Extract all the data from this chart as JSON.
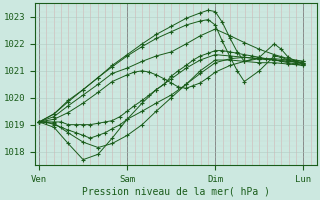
{
  "bg_color": "#cce8e0",
  "plot_bg_color": "#cce8e0",
  "line_color": "#1a5c1a",
  "marker_color": "#1a5c1a",
  "xlabel": "Pression niveau de la mer( hPa )",
  "xtick_labels": [
    "Ven",
    "Sam",
    "Dim",
    "Lun"
  ],
  "xtick_positions": [
    0,
    1,
    2,
    3
  ],
  "ylim": [
    1017.5,
    1023.5
  ],
  "xlim": [
    -0.05,
    3.15
  ],
  "yticks": [
    1018,
    1019,
    1020,
    1021,
    1022,
    1023
  ],
  "series": [
    {
      "x": [
        0.0,
        0.08,
        0.17,
        0.25,
        0.33,
        0.42,
        0.5,
        0.58,
        0.67,
        0.75,
        0.83,
        0.92,
        1.0,
        1.08,
        1.17,
        1.25,
        1.33,
        1.42,
        1.5,
        1.58,
        1.67,
        1.75,
        1.83,
        1.92,
        2.0,
        2.08,
        2.17,
        2.25,
        2.33,
        2.42,
        2.5,
        2.58,
        2.67,
        2.75,
        2.83,
        2.92,
        3.0
      ],
      "y": [
        1019.1,
        1019.1,
        1019.1,
        1019.1,
        1019.0,
        1019.0,
        1019.0,
        1019.0,
        1019.05,
        1019.1,
        1019.15,
        1019.3,
        1019.5,
        1019.7,
        1019.9,
        1020.1,
        1020.3,
        1020.5,
        1020.8,
        1021.0,
        1021.2,
        1021.4,
        1021.55,
        1021.65,
        1021.75,
        1021.75,
        1021.7,
        1021.65,
        1021.6,
        1021.55,
        1021.5,
        1021.45,
        1021.4,
        1021.35,
        1021.3,
        1021.25,
        1021.2
      ]
    },
    {
      "x": [
        0.0,
        0.08,
        0.17,
        0.25,
        0.33,
        0.42,
        0.5,
        0.58,
        0.67,
        0.75,
        0.83,
        0.92,
        1.0,
        1.17,
        1.33,
        1.5,
        1.67,
        1.83,
        2.0,
        2.17,
        2.33,
        2.5,
        2.67,
        2.83,
        3.0
      ],
      "y": [
        1019.1,
        1019.1,
        1019.0,
        1018.9,
        1018.8,
        1018.7,
        1018.6,
        1018.5,
        1018.6,
        1018.7,
        1018.85,
        1019.0,
        1019.2,
        1019.5,
        1019.8,
        1020.1,
        1020.5,
        1020.9,
        1021.3,
        1021.45,
        1021.5,
        1021.45,
        1021.4,
        1021.35,
        1021.3
      ]
    },
    {
      "x": [
        0.0,
        0.17,
        0.33,
        0.5,
        0.67,
        0.83,
        1.0,
        1.17,
        1.33,
        1.5,
        1.67,
        1.83,
        2.0,
        2.17,
        2.33,
        2.5,
        2.67,
        2.83,
        3.0
      ],
      "y": [
        1019.1,
        1019.05,
        1018.7,
        1018.35,
        1018.15,
        1018.3,
        1018.6,
        1019.0,
        1019.5,
        1020.0,
        1020.5,
        1021.0,
        1021.4,
        1021.4,
        1021.35,
        1021.3,
        1021.3,
        1021.25,
        1021.2
      ]
    },
    {
      "x": [
        0.0,
        0.17,
        0.33,
        0.5,
        0.67,
        0.83,
        1.0,
        1.17,
        1.33,
        1.5,
        1.67,
        1.83,
        2.0,
        2.17,
        2.33,
        2.5,
        2.67,
        2.83,
        3.0
      ],
      "y": [
        1019.1,
        1018.9,
        1018.3,
        1017.7,
        1017.9,
        1018.5,
        1019.2,
        1019.8,
        1020.3,
        1020.7,
        1021.1,
        1021.4,
        1021.6,
        1021.55,
        1021.5,
        1021.45,
        1021.4,
        1021.35,
        1021.3
      ]
    },
    {
      "x": [
        0.0,
        0.17,
        0.33,
        0.5,
        0.67,
        0.83,
        1.0,
        1.08,
        1.17,
        1.25,
        1.33,
        1.42,
        1.5,
        1.58,
        1.67,
        1.75,
        1.83,
        1.92,
        2.0,
        2.17,
        2.33,
        2.5,
        2.67,
        2.83,
        3.0
      ],
      "y": [
        1019.1,
        1019.2,
        1019.45,
        1019.8,
        1020.2,
        1020.6,
        1020.85,
        1020.95,
        1021.0,
        1020.95,
        1020.85,
        1020.7,
        1020.55,
        1020.4,
        1020.35,
        1020.45,
        1020.55,
        1020.75,
        1020.95,
        1021.2,
        1021.35,
        1021.45,
        1021.45,
        1021.4,
        1021.35
      ]
    },
    {
      "x": [
        0.0,
        0.17,
        0.33,
        0.5,
        0.67,
        0.83,
        1.0,
        1.17,
        1.33,
        1.5,
        1.67,
        1.83,
        2.0,
        2.17,
        2.33,
        2.5,
        2.67,
        2.83,
        3.0
      ],
      "y": [
        1019.1,
        1019.3,
        1019.7,
        1020.1,
        1020.5,
        1020.9,
        1021.1,
        1021.35,
        1021.55,
        1021.7,
        1022.0,
        1022.3,
        1022.55,
        1022.3,
        1022.05,
        1021.8,
        1021.6,
        1021.45,
        1021.35
      ]
    },
    {
      "x": [
        0.0,
        0.17,
        0.33,
        0.5,
        0.67,
        0.83,
        1.0,
        1.17,
        1.33,
        1.5,
        1.67,
        1.83,
        1.92,
        2.0,
        2.08,
        2.17,
        2.25,
        2.33,
        2.5,
        2.67,
        2.75,
        2.83,
        2.92,
        3.0
      ],
      "y": [
        1019.1,
        1019.4,
        1019.85,
        1020.3,
        1020.75,
        1021.2,
        1021.6,
        1022.0,
        1022.35,
        1022.65,
        1022.95,
        1023.15,
        1023.25,
        1023.2,
        1022.8,
        1022.2,
        1021.7,
        1021.35,
        1021.5,
        1022.0,
        1021.8,
        1021.5,
        1021.35,
        1021.25
      ]
    },
    {
      "x": [
        0.0,
        0.17,
        0.33,
        0.5,
        0.67,
        0.83,
        1.0,
        1.17,
        1.33,
        1.5,
        1.67,
        1.83,
        1.92,
        2.0,
        2.08,
        2.17,
        2.25,
        2.33,
        2.5,
        2.67,
        2.75,
        2.83,
        2.92,
        3.0
      ],
      "y": [
        1019.1,
        1019.4,
        1019.9,
        1020.3,
        1020.75,
        1021.15,
        1021.55,
        1021.9,
        1022.2,
        1022.45,
        1022.7,
        1022.85,
        1022.9,
        1022.7,
        1022.1,
        1021.5,
        1021.0,
        1020.6,
        1021.0,
        1021.55,
        1021.5,
        1021.4,
        1021.3,
        1021.25
      ]
    }
  ]
}
